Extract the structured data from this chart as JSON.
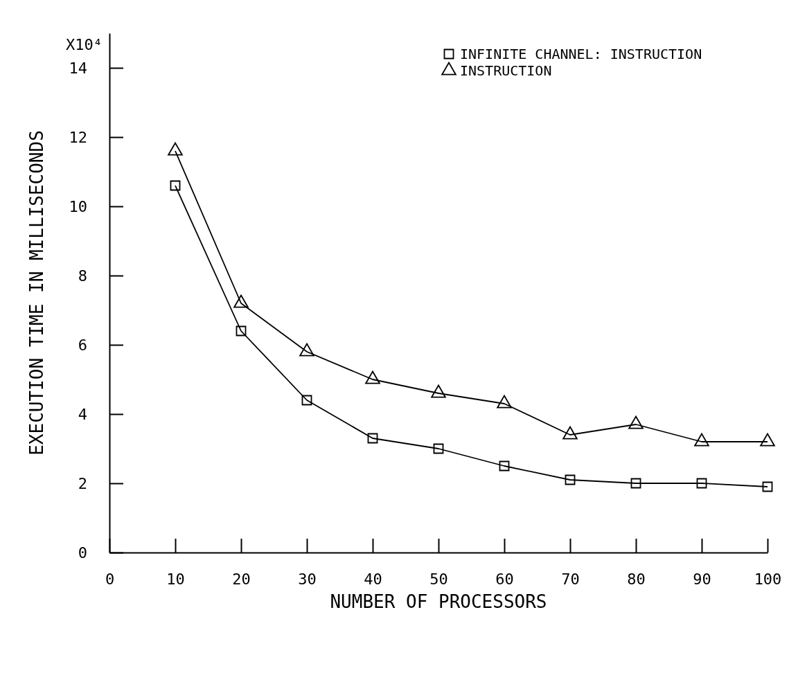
{
  "chart_data": {
    "type": "line",
    "xlabel": "NUMBER OF PROCESSORS",
    "ylabel": "EXECUTION TIME IN MILLISECONDS",
    "annotations": [
      "X10⁴"
    ],
    "x": [
      10,
      20,
      30,
      40,
      50,
      60,
      70,
      80,
      90,
      100
    ],
    "series": [
      {
        "name": "INFINITE CHANNEL: INSTRUCTION",
        "color": "#000000",
        "marker": "square",
        "values": [
          10.6,
          6.4,
          4.4,
          3.3,
          3.0,
          2.5,
          2.1,
          2.0,
          2.0,
          1.9
        ]
      },
      {
        "name": "INSTRUCTION",
        "color": "#000000",
        "marker": "triangle",
        "values": [
          11.6,
          7.2,
          5.8,
          5.0,
          4.6,
          4.3,
          3.4,
          3.7,
          3.2,
          3.2
        ]
      }
    ],
    "xlim": [
      0,
      100
    ],
    "xticks": [
      0,
      10,
      20,
      30,
      40,
      50,
      60,
      70,
      80,
      90,
      100
    ],
    "ylim": [
      0,
      15
    ],
    "yticks": [
      0,
      2,
      4,
      6,
      8,
      10,
      12,
      14
    ],
    "grid": false,
    "legend": "top right",
    "line_style": "solid"
  }
}
